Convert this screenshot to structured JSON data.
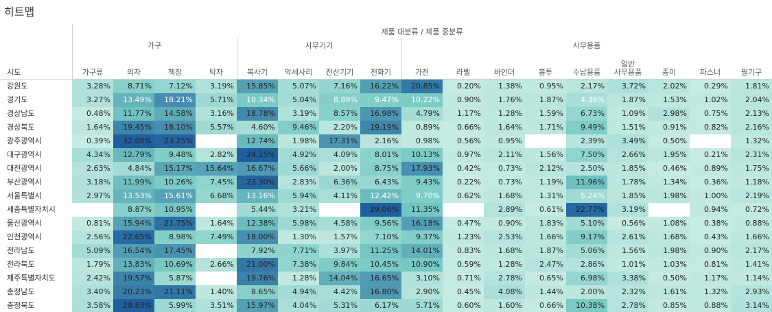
{
  "title": "히트맵",
  "header_title": "제품 대분류 / 제품 중분류",
  "row_header": "시도",
  "groups": [
    {
      "label": "가구",
      "span": 4
    },
    {
      "label": "사무기기",
      "span": 4
    },
    {
      "label": "사무용품",
      "span": 9
    }
  ],
  "chart_data": {
    "type": "heatmap",
    "title": "히트맵",
    "xlabel": "제품 대분류 / 제품 중분류",
    "ylabel": "시도",
    "columns": [
      "가구류",
      "의자",
      "책장",
      "탁자",
      "복사기",
      "악세사리",
      "전산기기",
      "전화기",
      "가전",
      "라벨",
      "바인더",
      "봉투",
      "수납용품",
      "일반 사무용품",
      "종이",
      "파스너",
      "필기구"
    ],
    "rows": [
      "강원도",
      "경기도",
      "경상남도",
      "경상북도",
      "광주광역시",
      "대구광역시",
      "대전광역시",
      "부산광역시",
      "서울특별시",
      "세종특별자치시",
      "울산광역시",
      "인천광역시",
      "전라남도",
      "전라북도",
      "제주특별자치도",
      "충청남도",
      "충청북도"
    ],
    "values": [
      [
        "3.28%",
        "8.71%",
        "7.12%",
        "3.19%",
        "15.85%",
        "5.07%",
        "7.16%",
        "16.22%",
        "20.85%",
        "0.20%",
        "1.38%",
        "0.95%",
        "2.17%",
        "3.72%",
        "2.02%",
        "0.29%",
        "1.81%"
      ],
      [
        "3.27%",
        "13.49%",
        "18.21%",
        "5.71%",
        "10.34%",
        "5.04%",
        "8.89%",
        "9.47%",
        "10.22%",
        "0.90%",
        "1.76%",
        "1.87%",
        "4.36%",
        "1.87%",
        "1.53%",
        "1.02%",
        "2.04%"
      ],
      [
        "0.48%",
        "11.77%",
        "14.58%",
        "3.16%",
        "18.78%",
        "3.19%",
        "8.57%",
        "16.98%",
        "4.79%",
        "1.17%",
        "1.28%",
        "1.59%",
        "6.73%",
        "1.09%",
        "2.98%",
        "0.75%",
        "2.13%"
      ],
      [
        "1.64%",
        "19.45%",
        "18.10%",
        "5.57%",
        "4.60%",
        "9.46%",
        "2.20%",
        "19.19%",
        "0.89%",
        "0.66%",
        "1.64%",
        "1.71%",
        "9.49%",
        "1.51%",
        "0.91%",
        "0.82%",
        "2.16%"
      ],
      [
        "0.39%",
        "32.00%",
        "23.25%",
        null,
        "12.74%",
        "1.98%",
        "17.31%",
        "2.16%",
        "0.98%",
        "0.56%",
        "0.95%",
        null,
        "2.39%",
        "3.49%",
        "0.50%",
        null,
        "1.32%"
      ],
      [
        "4.34%",
        "12.79%",
        "9.48%",
        "2.82%",
        "24.15%",
        "4.92%",
        "4.09%",
        "8.01%",
        "10.13%",
        "0.97%",
        "2.11%",
        "1.56%",
        "7.50%",
        "2.66%",
        "1.95%",
        "0.21%",
        "2.31%"
      ],
      [
        "2.63%",
        "4.84%",
        "15.17%",
        "15.64%",
        "16.67%",
        "5.66%",
        "2.00%",
        "8.75%",
        "17.93%",
        "0.42%",
        "0.73%",
        "2.12%",
        "2.50%",
        "1.85%",
        "0.46%",
        "0.89%",
        "1.75%"
      ],
      [
        "3.18%",
        "11.99%",
        "10.26%",
        "7.45%",
        "23.30%",
        "2.83%",
        "6.36%",
        "6.43%",
        "9.43%",
        "0.22%",
        "0.73%",
        "1.19%",
        "11.96%",
        "1.78%",
        "1.34%",
        "0.36%",
        "1.18%"
      ],
      [
        "2.97%",
        "13.53%",
        "15.61%",
        "6.68%",
        "13.16%",
        "5.94%",
        "4.11%",
        "12.42%",
        "9.70%",
        "0.62%",
        "1.68%",
        "1.31%",
        "5.24%",
        "1.85%",
        "1.98%",
        "1.00%",
        "2.19%"
      ],
      [
        null,
        "8.87%",
        "10.95%",
        null,
        "5.44%",
        "3.21%",
        null,
        "29.06%",
        "11.35%",
        null,
        "2.89%",
        "0.61%",
        "22.77%",
        "3.19%",
        null,
        "0.94%",
        "0.72%"
      ],
      [
        "0.81%",
        "15.94%",
        "21.75%",
        "1.64%",
        "12.38%",
        "5.98%",
        "4.58%",
        "9.56%",
        "16.18%",
        "0.47%",
        "0.90%",
        "1.83%",
        "5.10%",
        "0.56%",
        "1.08%",
        "0.38%",
        "0.88%"
      ],
      [
        "2.56%",
        "22.65%",
        "8.98%",
        "7.49%",
        "18.00%",
        "1.30%",
        "1.57%",
        "7.10%",
        "9.37%",
        "1.23%",
        "2.53%",
        "1.66%",
        "9.17%",
        "2.61%",
        "1.68%",
        "0.43%",
        "1.66%"
      ],
      [
        "5.09%",
        "16.54%",
        "17.45%",
        null,
        "7.92%",
        "7.71%",
        "3.97%",
        "11.25%",
        "14.01%",
        "0.83%",
        "1.68%",
        "1.87%",
        "5.06%",
        "1.56%",
        "1.98%",
        "0.90%",
        "2.17%"
      ],
      [
        "1.79%",
        "13.83%",
        "10.69%",
        "2.66%",
        "21.00%",
        "7.38%",
        "9.84%",
        "10.45%",
        "10.90%",
        "0.59%",
        "1.28%",
        "2.47%",
        "2.86%",
        "1.01%",
        "1.03%",
        "0.81%",
        "1.41%"
      ],
      [
        "2.42%",
        "19.57%",
        "5.87%",
        null,
        "19.76%",
        "1.28%",
        "14.04%",
        "16.65%",
        "3.10%",
        "0.71%",
        "2.78%",
        "0.65%",
        "6.98%",
        "3.38%",
        "0.50%",
        "1.17%",
        "1.14%"
      ],
      [
        "3.40%",
        "20.23%",
        "21.11%",
        "1.40%",
        "8.65%",
        "4.94%",
        "4.42%",
        "16.80%",
        "2.90%",
        "0.45%",
        "4.08%",
        "1.44%",
        "2.00%",
        "2.32%",
        "1.61%",
        "1.32%",
        "2.93%"
      ],
      [
        "3.58%",
        "28.83%",
        "5.99%",
        "3.51%",
        "15.97%",
        "4.04%",
        "5.31%",
        "6.17%",
        "5.71%",
        "0.60%",
        "1.60%",
        "0.66%",
        "10.38%",
        "2.78%",
        "0.85%",
        "0.88%",
        "3.14%"
      ]
    ],
    "dark_cells": [
      [
        1,
        1
      ],
      [
        1,
        2
      ],
      [
        1,
        4
      ],
      [
        1,
        6
      ],
      [
        1,
        7
      ],
      [
        1,
        8
      ],
      [
        1,
        12
      ],
      [
        8,
        1
      ],
      [
        8,
        2
      ],
      [
        8,
        4
      ],
      [
        8,
        7
      ],
      [
        8,
        8
      ],
      [
        8,
        12
      ]
    ],
    "color_scale": {
      "low": "#c9ece3",
      "high": "#1f5f9e"
    }
  }
}
